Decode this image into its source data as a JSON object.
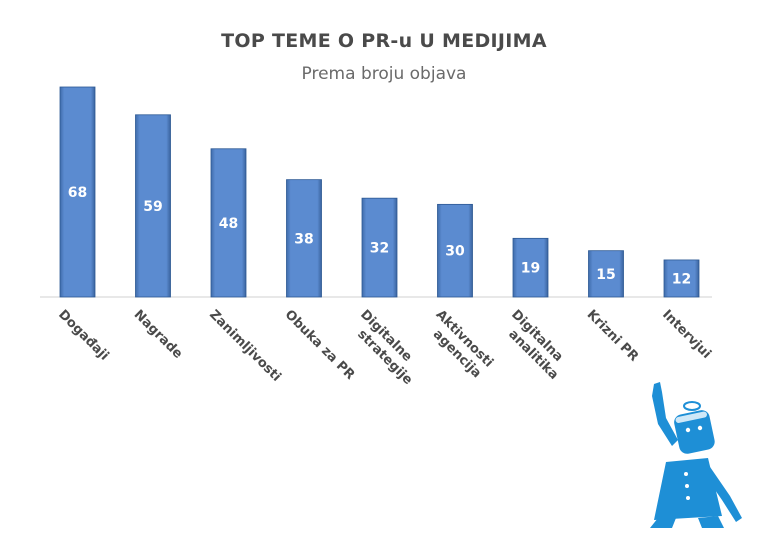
{
  "chart_data": {
    "type": "bar",
    "title": "TOP TEME O PR-u U MEDIJIMA",
    "subtitle": "Prema broju objava",
    "categories": [
      [
        "Događaji"
      ],
      [
        "Nagrade"
      ],
      [
        "Zanimljivosti"
      ],
      [
        "Obuka za PR"
      ],
      [
        "Digitalne",
        "strategije"
      ],
      [
        "Aktivnosti",
        "agencija"
      ],
      [
        "Digitalna",
        "analitika"
      ],
      [
        "Krizni PR"
      ],
      [
        "Intervjui"
      ]
    ],
    "values": [
      68,
      59,
      48,
      38,
      32,
      30,
      19,
      15,
      12
    ],
    "ylim": [
      0,
      68
    ],
    "grid": false,
    "legend": "none",
    "data_labels": true,
    "colors": {
      "bar": "#4f7fc1",
      "bar_edge": "#2c5893",
      "label": "#ffffff",
      "axis": "#d0d0d0",
      "category_text": "#4a4a4a",
      "mascot": "#1e8fd6"
    }
  }
}
